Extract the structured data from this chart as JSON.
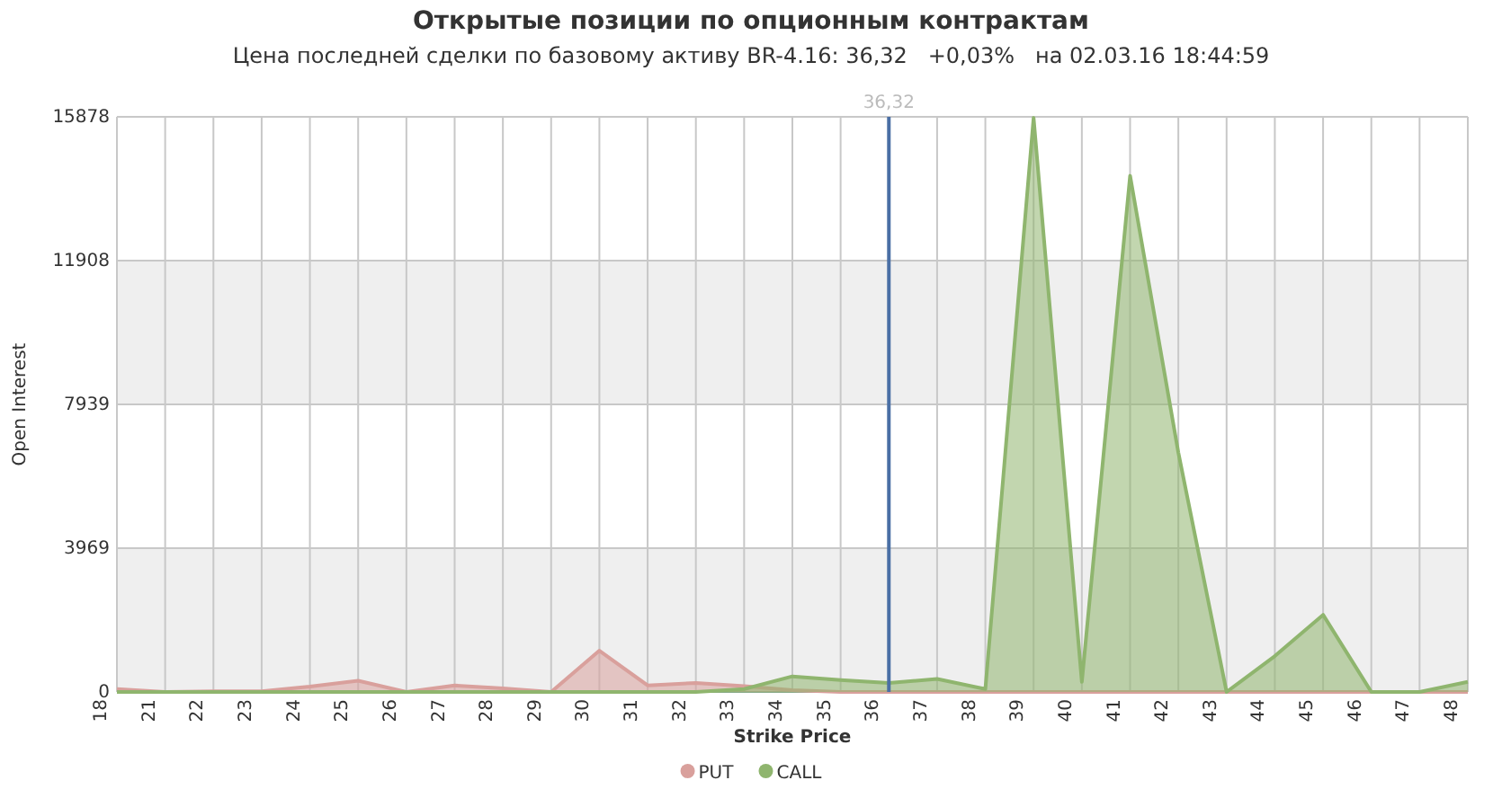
{
  "chart_data": {
    "type": "area",
    "title": "Открытые позиции по опционным контрактам",
    "subtitle": "Цена последней сделки по базовому активу BR-4.16: 36,32   +0,03%   на 02.03.16 18:44:59",
    "xlabel": "Strike Price",
    "ylabel": "Open Interest",
    "categories": [
      "18",
      "21",
      "22",
      "23",
      "24",
      "25",
      "26",
      "27",
      "28",
      "29",
      "30",
      "31",
      "32",
      "33",
      "34",
      "35",
      "36",
      "37",
      "38",
      "39",
      "40",
      "41",
      "42",
      "43",
      "44",
      "45",
      "46",
      "47",
      "48"
    ],
    "series": [
      {
        "name": "PUT",
        "color": "#d9a09c",
        "values": [
          80,
          0,
          20,
          20,
          150,
          310,
          0,
          180,
          100,
          0,
          1140,
          180,
          250,
          160,
          50,
          0,
          0,
          0,
          0,
          0,
          0,
          0,
          0,
          0,
          0,
          0,
          0,
          0,
          0
        ]
      },
      {
        "name": "CALL",
        "color": "#8fb56e",
        "values": [
          0,
          0,
          0,
          0,
          0,
          0,
          0,
          0,
          0,
          0,
          0,
          0,
          0,
          80,
          430,
          330,
          250,
          360,
          80,
          15850,
          280,
          14250,
          6610,
          0,
          990,
          2130,
          0,
          0,
          280
        ]
      }
    ],
    "ylim": [
      0,
      15878
    ],
    "yticks": [
      0,
      3969,
      7939,
      11908,
      15878
    ],
    "grid": true,
    "legend": "bottom",
    "marker": "none",
    "ref_lines": [
      {
        "axis": "x",
        "value": "36",
        "label": "36,32",
        "color": "#4a6fa5"
      }
    ]
  }
}
